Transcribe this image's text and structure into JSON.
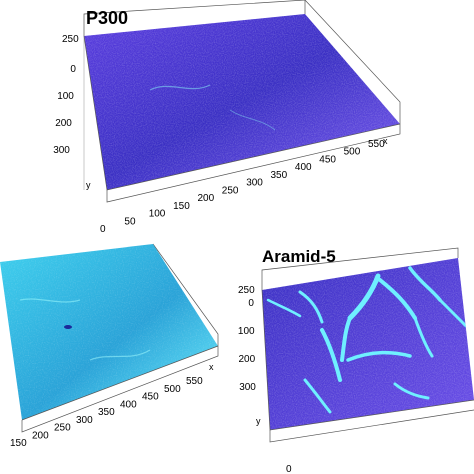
{
  "chart_data": [
    {
      "type": "surface",
      "panel_title": "P300",
      "x_ticks": [
        "0",
        "50",
        "100",
        "150",
        "200",
        "250",
        "300",
        "350",
        "400",
        "450",
        "500",
        "550"
      ],
      "x_axis_letter": "x",
      "y_ticks": [
        "0",
        "100",
        "200",
        "300"
      ],
      "y_axis_letter": "y",
      "z_ticks": [
        "250"
      ],
      "colormap": [
        "#3a2fc4",
        "#5b3ee0",
        "#7a5cf0",
        "#4fb8e8",
        "#6ff0ff"
      ],
      "surface_character": "mostly flat, violet-blue"
    },
    {
      "type": "surface",
      "panel_title": "",
      "x_ticks": [
        "150",
        "200",
        "250",
        "300",
        "350",
        "400",
        "450",
        "500",
        "550"
      ],
      "x_axis_letter": "x",
      "y_ticks": [],
      "y_axis_letter": "",
      "z_ticks": [],
      "colormap": [
        "#2aa3d8",
        "#3fd0ee",
        "#6ff0ff",
        "#4a4bd8"
      ],
      "surface_character": "flat, predominantly cyan"
    },
    {
      "type": "surface",
      "panel_title": "Aramid-5",
      "x_ticks": [
        "0"
      ],
      "x_axis_letter": "",
      "y_ticks": [
        "0",
        "100",
        "200",
        "300"
      ],
      "y_axis_letter": "y",
      "z_ticks": [
        "250"
      ],
      "colormap": [
        "#3a2fc4",
        "#6a4ee8",
        "#4fb8e8",
        "#6ff0ff",
        "#b8ffd0"
      ],
      "surface_character": "violet with raised cyan fibre ridges"
    }
  ]
}
